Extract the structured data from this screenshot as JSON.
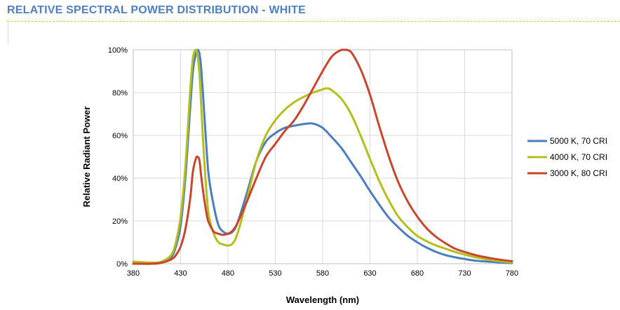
{
  "header": {
    "title": "RELATIVE SPECTRAL POWER DISTRIBUTION - WHITE"
  },
  "colors": {
    "title": "#4f7fc0",
    "rule": "#e8c21a"
  },
  "chart_data": {
    "type": "line",
    "title": "",
    "xlabel": "Wavelength (nm)",
    "ylabel": "Relative Radiant Power",
    "xlim": [
      380,
      780
    ],
    "ylim": [
      0,
      100
    ],
    "x_ticks": [
      380,
      430,
      480,
      530,
      580,
      630,
      680,
      730,
      780
    ],
    "y_ticks": [
      0,
      20,
      40,
      60,
      80,
      100
    ],
    "y_tick_labels": [
      "0%",
      "20%",
      "40%",
      "60%",
      "80%",
      "100%"
    ],
    "grid": true,
    "legend": "right",
    "series": [
      {
        "name": "5000 K, 70 CRI",
        "color": "#4a7ebf",
        "x": [
          380,
          400,
          410,
          420,
          425,
          430,
          435,
          440,
          443,
          446,
          448,
          450,
          452,
          455,
          458,
          460,
          465,
          470,
          475,
          480,
          485,
          490,
          500,
          510,
          520,
          530,
          540,
          550,
          560,
          570,
          580,
          590,
          600,
          610,
          620,
          630,
          640,
          650,
          660,
          670,
          680,
          690,
          700,
          710,
          720,
          730,
          740,
          750,
          760,
          770,
          780
        ],
        "y": [
          0,
          0,
          0.5,
          3,
          8,
          18,
          40,
          72,
          90,
          98,
          100,
          98,
          90,
          70,
          50,
          40,
          27,
          18,
          15,
          14,
          15,
          19,
          33,
          48,
          57,
          61,
          63.5,
          64.5,
          65.3,
          65.5,
          63.5,
          59,
          54,
          47.5,
          41,
          34,
          27.5,
          21.5,
          17,
          13,
          10,
          7.5,
          5.5,
          4,
          3,
          2.2,
          1.5,
          1.1,
          0.8,
          0.5,
          0.3
        ]
      },
      {
        "name": "4000 K, 70 CRI",
        "color": "#b5bf1c",
        "x": [
          380,
          400,
          410,
          420,
          425,
          430,
          435,
          440,
          443,
          446,
          448,
          450,
          452,
          455,
          458,
          460,
          465,
          470,
          475,
          480,
          485,
          490,
          500,
          510,
          520,
          530,
          540,
          550,
          560,
          570,
          580,
          585,
          590,
          600,
          610,
          620,
          630,
          640,
          650,
          660,
          670,
          680,
          690,
          700,
          710,
          720,
          730,
          740,
          750,
          760,
          770,
          780
        ],
        "y": [
          1,
          0.5,
          1,
          4,
          10,
          22,
          45,
          80,
          96,
          100,
          97,
          88,
          72,
          48,
          30,
          22,
          14,
          10,
          9,
          8.5,
          9.5,
          14,
          30,
          48,
          60,
          67,
          72,
          75.5,
          78,
          80,
          81.5,
          82,
          81,
          77,
          70,
          60,
          49,
          38.5,
          29.5,
          22,
          17,
          13,
          10.5,
          8.5,
          7,
          5.5,
          4.3,
          3.2,
          2.3,
          1.6,
          1,
          0.6
        ]
      },
      {
        "name": "3000 K, 80 CRI",
        "color": "#c9462c",
        "x": [
          380,
          400,
          410,
          420,
          425,
          430,
          435,
          440,
          443,
          446,
          448,
          450,
          452,
          455,
          458,
          460,
          465,
          470,
          475,
          480,
          485,
          490,
          500,
          510,
          520,
          530,
          540,
          550,
          560,
          570,
          580,
          590,
          600,
          605,
          610,
          620,
          630,
          640,
          650,
          660,
          670,
          680,
          690,
          700,
          710,
          720,
          730,
          740,
          750,
          760,
          770,
          780
        ],
        "y": [
          0,
          0,
          0.5,
          2,
          4,
          8,
          16,
          30,
          43,
          49,
          50,
          48,
          40,
          30,
          22,
          19,
          15,
          14,
          13.5,
          14,
          15.5,
          19,
          29,
          40,
          50,
          56,
          62,
          67,
          74,
          82,
          90,
          97,
          100,
          100,
          99,
          91,
          79,
          64,
          50,
          38,
          29,
          22,
          16.5,
          12.5,
          9.5,
          7,
          5.5,
          4.2,
          3.2,
          2.4,
          1.7,
          1.2
        ]
      }
    ]
  }
}
